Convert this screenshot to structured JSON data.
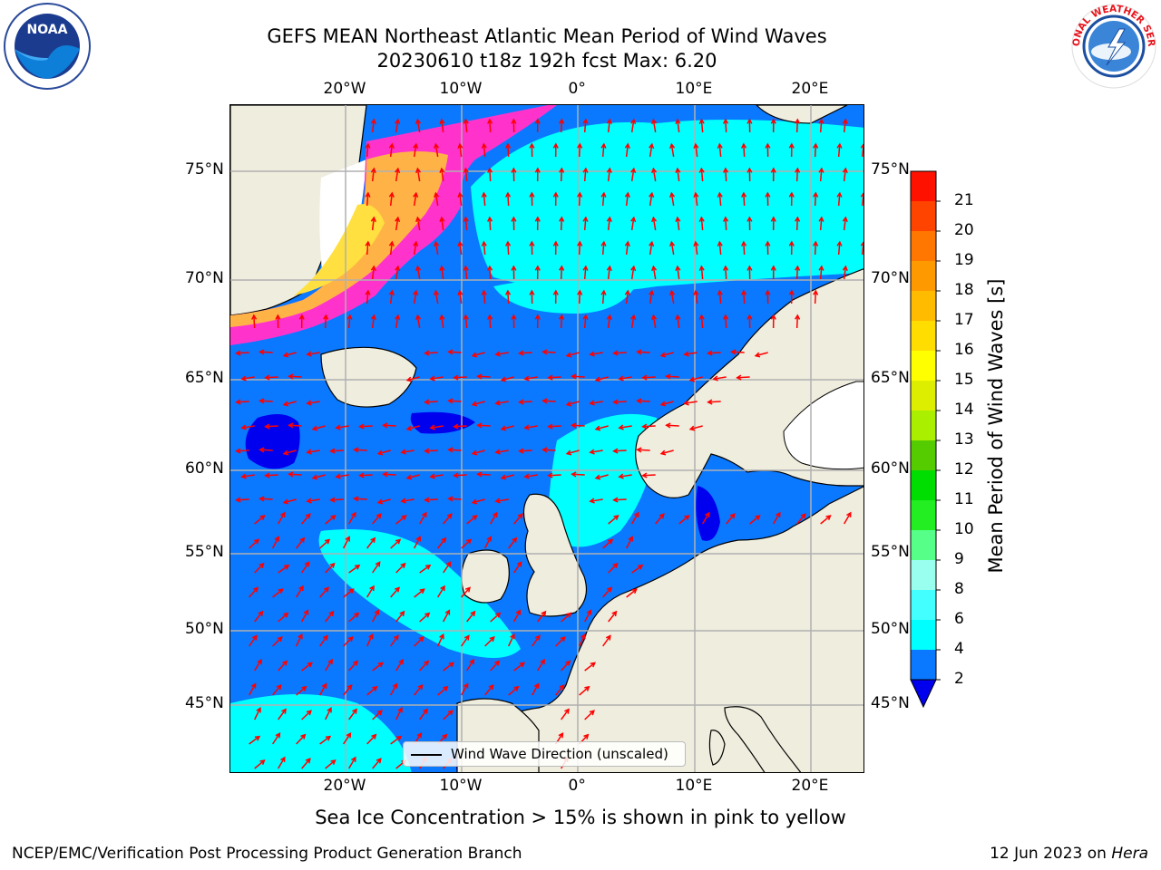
{
  "header": {
    "title_line1": "GEFS MEAN Northeast Atlantic Mean Period of Wind Waves",
    "title_line2": "20230610 t18z 192h fcst   Max: 6.20"
  },
  "map": {
    "lon_labels": [
      "20°W",
      "10°W",
      "0°",
      "10°E",
      "20°E"
    ],
    "lat_labels": [
      "75°N",
      "70°N",
      "65°N",
      "60°N",
      "55°N",
      "50°N",
      "45°N"
    ],
    "legend_label": "Wind Wave Direction (unscaled)",
    "arrow_color": "#ff0000",
    "land_color": "#efedde",
    "ice_colors": [
      "#ff33cc",
      "#ff88aa",
      "#ffb347",
      "#ffe040"
    ]
  },
  "colorbar": {
    "label": "Mean Period of Wind Waves [s]",
    "ticks": [
      "2",
      "4",
      "6",
      "8",
      "9",
      "10",
      "11",
      "12",
      "13",
      "14",
      "15",
      "16",
      "17",
      "18",
      "19",
      "20",
      "21"
    ],
    "colors": [
      "#0a78ff",
      "#00ffff",
      "#44ffff",
      "#99ffee",
      "#55ff88",
      "#22ee22",
      "#00dd00",
      "#55cc00",
      "#aaee00",
      "#ddee00",
      "#ffff00",
      "#ffdd00",
      "#ffbb00",
      "#ff9900",
      "#ff7700",
      "#ff4400",
      "#ff1100"
    ],
    "under_color": "#0000ee"
  },
  "footer": {
    "ice_note": "Sea Ice Concentration > 15% is shown in pink to yellow",
    "credit": "NCEP/EMC/Verification Post Processing Product Generation Branch",
    "date_prefix": "12 Jun 2023 on ",
    "machine": "Hera"
  },
  "logos": {
    "noaa_text": "NOAA",
    "nws_text": "NATIONAL WEATHER SERVICE"
  }
}
